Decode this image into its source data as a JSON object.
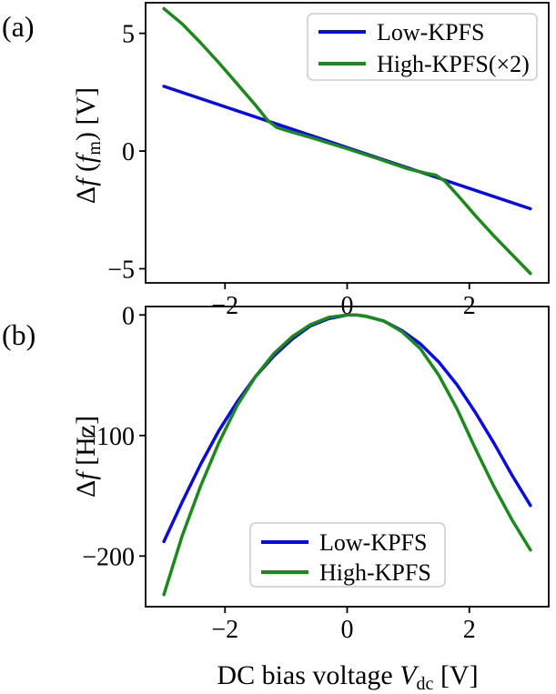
{
  "chart_data": [
    {
      "type": "line",
      "panel_label": "(a)",
      "ylabel_prefix": "Δ",
      "ylabel_f": "f",
      "ylabel_open": " (",
      "ylabel_f2": "f",
      "ylabel_sub": "m",
      "ylabel_close": ") [V]",
      "xlim": [
        -3.3,
        3.3
      ],
      "ylim": [
        -5.6,
        6.3
      ],
      "xticks": [
        -2,
        0,
        2
      ],
      "xtick_labels": [
        "−2",
        "0",
        "2"
      ],
      "yticks": [
        -5,
        0,
        5
      ],
      "ytick_labels": [
        "−5",
        "0",
        "5"
      ],
      "legend_position": "top-right",
      "series": [
        {
          "name": "Low-KPFS",
          "color": "#0a0ae6",
          "x": [
            -3.0,
            3.0
          ],
          "y": [
            2.75,
            -2.45
          ]
        },
        {
          "name": "High-KPFS(×2)",
          "color": "#1a8a1a",
          "x": [
            -3.0,
            -2.7,
            -2.4,
            -2.1,
            -1.8,
            -1.5,
            -1.3,
            -1.15,
            -1.0,
            -0.5,
            0.0,
            0.5,
            1.0,
            1.3,
            1.45,
            1.6,
            1.8,
            2.1,
            2.4,
            2.7,
            3.0
          ],
          "y": [
            6.05,
            5.4,
            4.6,
            3.75,
            2.85,
            1.95,
            1.3,
            1.0,
            0.88,
            0.5,
            0.1,
            -0.32,
            -0.76,
            -0.95,
            -1.02,
            -1.28,
            -1.85,
            -2.75,
            -3.6,
            -4.4,
            -5.2
          ]
        }
      ]
    },
    {
      "type": "line",
      "panel_label": "(b)",
      "ylabel_prefix": "Δ",
      "ylabel_f": "f",
      "ylabel_rest": " [Hz]",
      "xlabel_text": "DC bias voltage ",
      "xlabel_var": "V",
      "xlabel_sub": "dc",
      "xlabel_unit": " [V]",
      "xlim": [
        -3.3,
        3.3
      ],
      "ylim": [
        -242,
        7
      ],
      "xticks": [
        -2,
        0,
        2
      ],
      "xtick_labels": [
        "−2",
        "0",
        "2"
      ],
      "yticks": [
        0,
        -100,
        -200
      ],
      "ytick_labels": [
        "0",
        "−100",
        "−200"
      ],
      "legend_position": "bottom-center",
      "series": [
        {
          "name": "Low-KPFS",
          "color": "#0a0ae6",
          "x": [
            -3.0,
            -2.7,
            -2.4,
            -2.1,
            -1.8,
            -1.5,
            -1.2,
            -0.9,
            -0.6,
            -0.3,
            0.0,
            0.15,
            0.3,
            0.6,
            0.9,
            1.2,
            1.5,
            1.8,
            2.1,
            2.4,
            2.7,
            3.0
          ],
          "y": [
            -188,
            -155,
            -124,
            -96,
            -72,
            -51,
            -34,
            -20,
            -9,
            -3,
            0,
            0,
            -1,
            -5,
            -13,
            -24,
            -39,
            -58,
            -81,
            -106,
            -133,
            -158
          ]
        },
        {
          "name": "High-KPFS",
          "color": "#1a8a1a",
          "x": [
            -3.0,
            -2.7,
            -2.4,
            -2.1,
            -1.8,
            -1.5,
            -1.2,
            -0.9,
            -0.6,
            -0.3,
            0.0,
            0.15,
            0.3,
            0.6,
            0.9,
            1.2,
            1.5,
            1.8,
            2.1,
            2.4,
            2.7,
            3.0
          ],
          "y": [
            -232,
            -183,
            -142,
            -106,
            -75,
            -51,
            -32,
            -18,
            -8,
            -2,
            0,
            0,
            -1,
            -5,
            -14,
            -28,
            -50,
            -78,
            -111,
            -142,
            -170,
            -195
          ]
        }
      ]
    }
  ]
}
